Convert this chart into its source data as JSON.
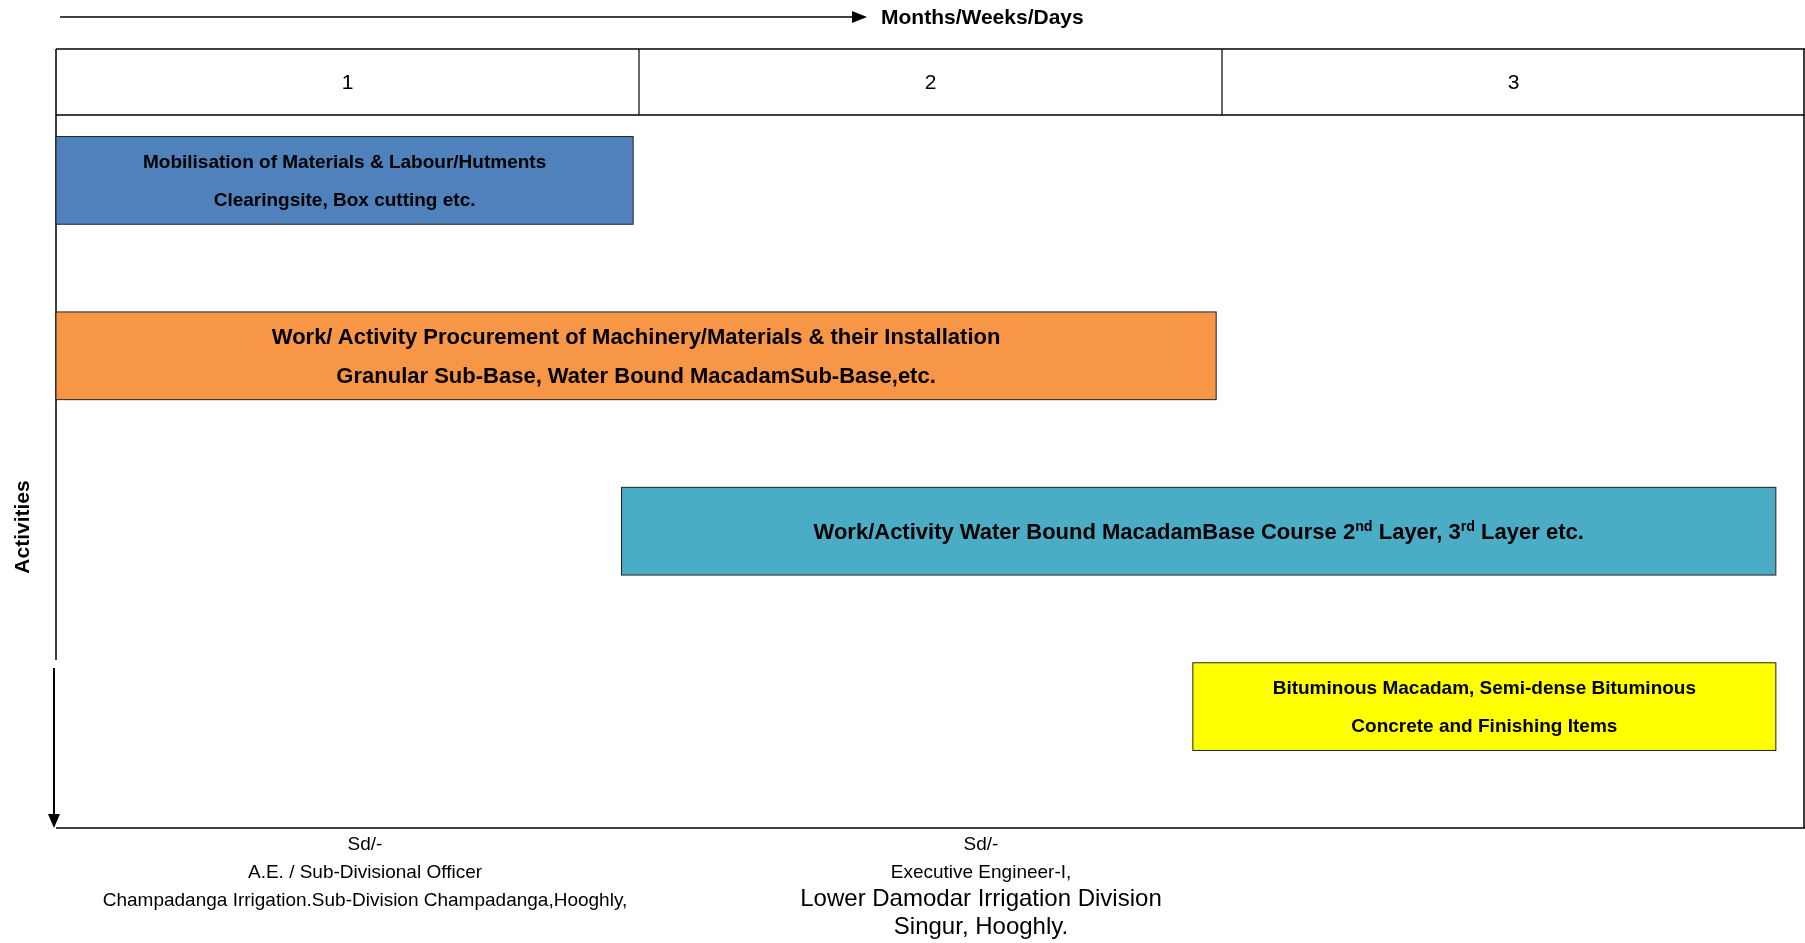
{
  "chart_data": {
    "type": "bar",
    "orientation": "horizontal",
    "xlabel": "Months/Weeks/Days",
    "ylabel": "Activities",
    "categories": [
      "Mobilisation of Materials & Labour/Hutments\nClearingsite, Box cutting etc.",
      "Work/ Activity Procurement of Machinery/Materials & their Installation\nGranular Sub-Base, Water Bound MacadamSub-Base,etc.",
      "Work/Activity Water Bound MacadamBase Course 2$^{nd}$ Layer, 3$^{rd}$ Layer etc.",
      "Bituminous Macadam, Semi-dense Bituminous\nConcrete and Finishing Items"
    ],
    "base": [
      0,
      0,
      0.97,
      1.95
    ],
    "values": [
      0.99,
      1.99,
      1.98,
      1.0
    ],
    "colors": [
      "#4f81bd",
      "#f79646",
      "#4bacc6",
      "#ffff00"
    ],
    "xlim": [
      0,
      3
    ],
    "xticks": [
      {
        "value": 0.5,
        "label": "1"
      },
      {
        "value": 1.5,
        "label": "2"
      },
      {
        "value": 2.5,
        "label": "3"
      }
    ],
    "annotations": [
      "Sd/-\nA.E. / Sub-Divisional Officer\nChampadanga Irrigation.Sub-Division Champadanga,Hooghly,",
      "Sd/-\nExecutive Engineer-I,\nLower Damodar Irrigation Division\nSingur, Hooghly."
    ]
  }
}
